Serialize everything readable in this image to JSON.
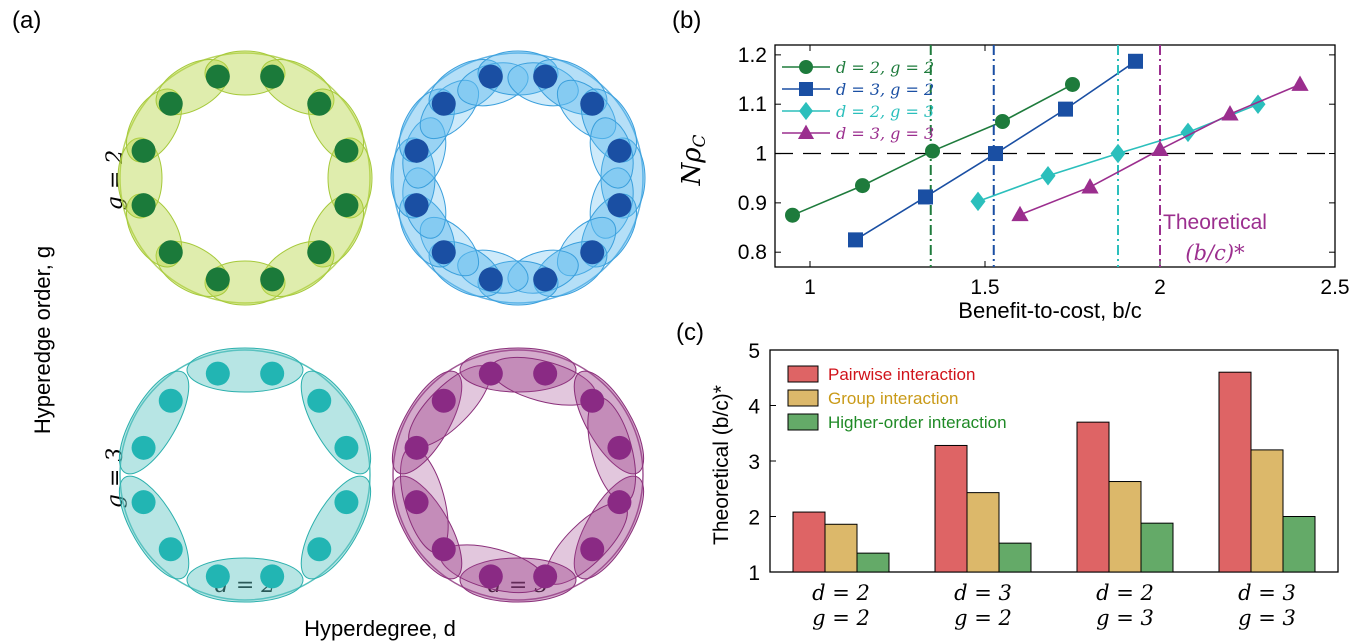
{
  "panel_a": {
    "label": "(a)",
    "y_axis_label": "Hyperedge order, g",
    "x_axis_label": "Hyperdegree, d",
    "row_labels": [
      "g = 2",
      "g = 3"
    ],
    "col_labels": [
      "d = 2",
      "d = 3"
    ],
    "rings": [
      {
        "d": 2,
        "g": 2,
        "fill": "#b9d84a",
        "stroke": "#a6c93a",
        "node": "#1b7a3a"
      },
      {
        "d": 3,
        "g": 2,
        "fill": "#5ab8ee",
        "stroke": "#3a9fdc",
        "node": "#1a4fa3"
      },
      {
        "d": 2,
        "g": 3,
        "fill": "#5fc6c4",
        "stroke": "#2bb0ad",
        "node": "#22b5b3"
      },
      {
        "d": 3,
        "g": 3,
        "fill": "#a0458f",
        "stroke": "#8a2f7a",
        "node": "#8a2a84"
      }
    ]
  },
  "panel_b": {
    "label": "(b)",
    "annotation_line1": "Theoretical",
    "annotation_line2": "(b/c)*"
  },
  "panel_c": {
    "label": "(c)"
  },
  "chart_data": [
    {
      "type": "line",
      "xlabel": "Benefit-to-cost, b/c",
      "ylabel": "Nρ_C",
      "xlim": [
        0.9,
        2.5
      ],
      "ylim": [
        0.77,
        1.22
      ],
      "xticks": [
        "1",
        "1.5",
        "2",
        "2.5"
      ],
      "xtick_values": [
        1,
        1.5,
        2,
        2.5
      ],
      "yticks": [
        "0.8",
        "0.9",
        "1",
        "1.1",
        "1.2"
      ],
      "ytick_values": [
        0.8,
        0.9,
        1,
        1.1,
        1.2
      ],
      "reference_line": 1,
      "legend_position": "top-left",
      "series": [
        {
          "name": "d = 2, g = 2",
          "color": "#1e7b3c",
          "marker": "circle",
          "x": [
            0.95,
            1.15,
            1.35,
            1.55,
            1.75
          ],
          "y": [
            0.875,
            0.935,
            1.005,
            1.065,
            1.14
          ],
          "threshold": 1.345
        },
        {
          "name": "d = 3, g = 2",
          "color": "#1a4fa3",
          "marker": "square",
          "x": [
            1.13,
            1.33,
            1.53,
            1.73,
            1.93
          ],
          "y": [
            0.825,
            0.912,
            1.0,
            1.09,
            1.187
          ],
          "threshold": 1.525
        },
        {
          "name": "d = 2, g = 3",
          "color": "#2bbfbc",
          "marker": "diamond",
          "x": [
            1.48,
            1.68,
            1.88,
            2.08,
            2.28
          ],
          "y": [
            0.903,
            0.955,
            1.0,
            1.043,
            1.1
          ],
          "threshold": 1.88
        },
        {
          "name": "d = 3, g = 3",
          "color": "#9b2e8e",
          "marker": "triangle",
          "x": [
            1.6,
            1.8,
            2.0,
            2.2,
            2.4
          ],
          "y": [
            0.876,
            0.932,
            1.008,
            1.08,
            1.14
          ],
          "threshold": 2.0
        }
      ]
    },
    {
      "type": "bar",
      "ylabel": "Theoretical (b/c)*",
      "ylim": [
        1,
        5
      ],
      "yticks": [
        "1",
        "2",
        "3",
        "4",
        "5"
      ],
      "ytick_values": [
        1,
        2,
        3,
        4,
        5
      ],
      "categories": [
        [
          "d = 2",
          "g = 2"
        ],
        [
          "d = 3",
          "g = 2"
        ],
        [
          "d = 2",
          "g = 3"
        ],
        [
          "d = 3",
          "g = 3"
        ]
      ],
      "legend_position": "top-left",
      "series": [
        {
          "name": "Pairwise interaction",
          "color": "#de6465",
          "text_color": "#d0121a",
          "values": [
            2.08,
            3.28,
            3.7,
            4.6
          ]
        },
        {
          "name": "Group interaction",
          "color": "#dcb86a",
          "text_color": "#c99a18",
          "values": [
            1.86,
            2.43,
            2.63,
            3.2
          ]
        },
        {
          "name": "Higher-order interaction",
          "color": "#64aa68",
          "text_color": "#1f8a26",
          "values": [
            1.34,
            1.52,
            1.88,
            2.0
          ]
        }
      ]
    }
  ]
}
